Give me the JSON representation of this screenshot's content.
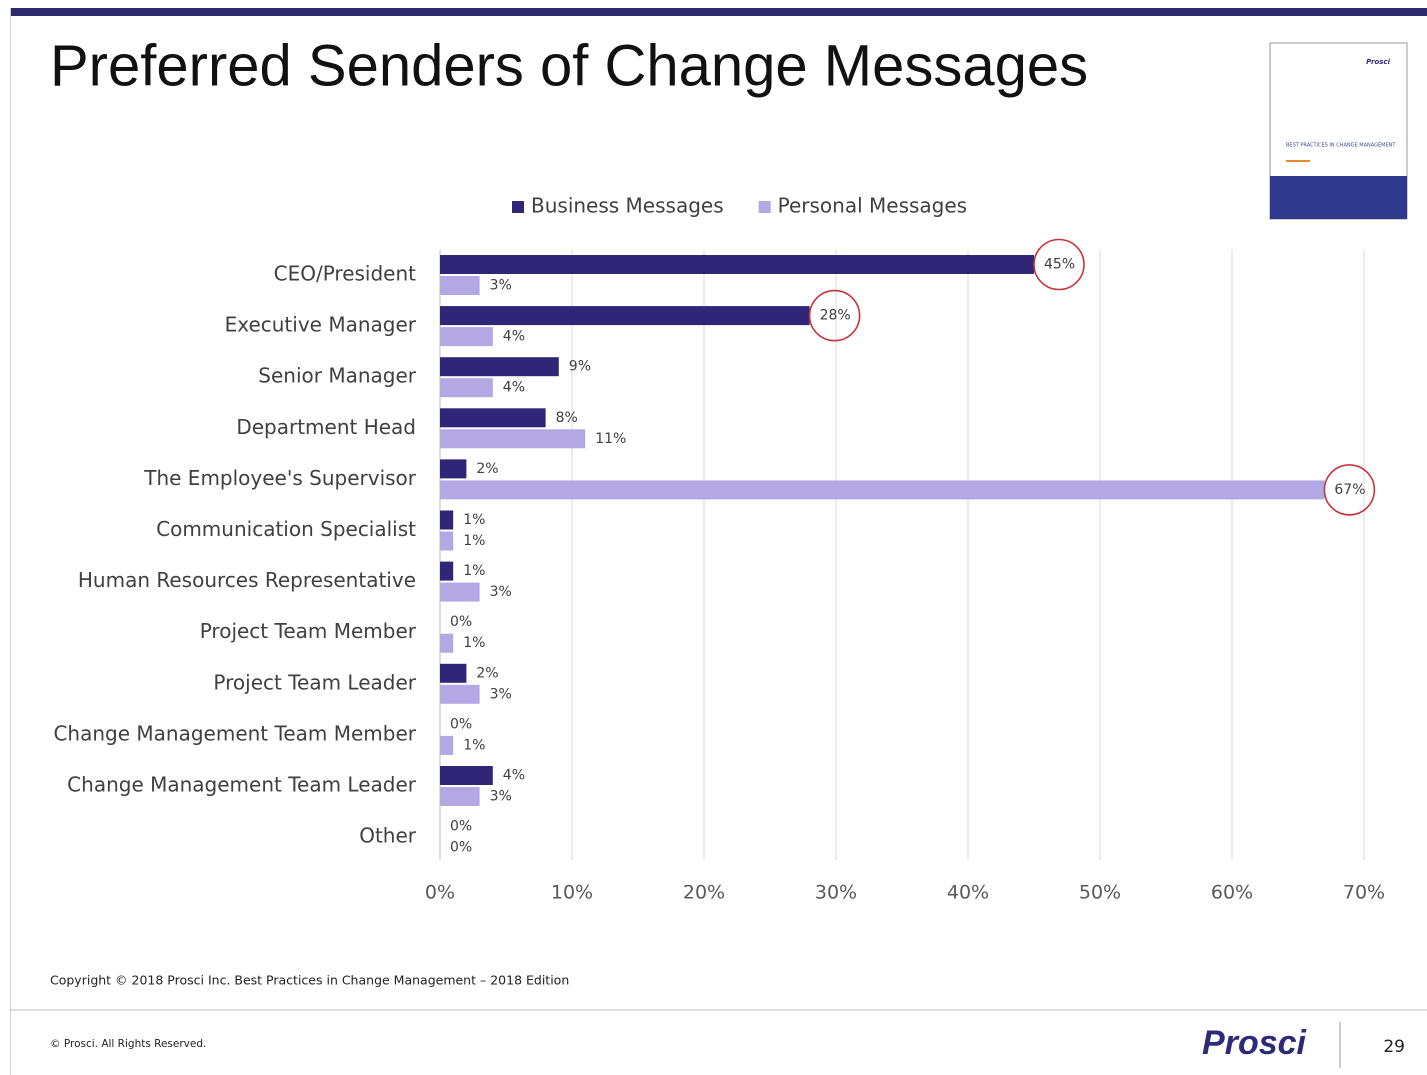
{
  "header": {
    "title": "Preferred Senders of Change Messages"
  },
  "cover": {
    "logo": "Prosci",
    "title": "BEST PRACTICES IN CHANGE MANAGEMENT"
  },
  "chart_data": {
    "type": "bar",
    "orientation": "horizontal",
    "categories": [
      "CEO/President",
      "Executive Manager",
      "Senior Manager",
      "Department Head",
      "The Employee's Supervisor",
      "Communication Specialist",
      "Human Resources Representative",
      "Project Team Member",
      "Project Team Leader",
      "Change Management Team Member",
      "Change Management Team Leader",
      "Other"
    ],
    "series": [
      {
        "name": "Business Messages",
        "color": "#2f2678",
        "values": [
          45,
          28,
          9,
          8,
          2,
          1,
          1,
          0,
          2,
          0,
          4,
          0
        ],
        "value_labels": [
          "45%",
          "28%",
          "9%",
          "8%",
          "2%",
          "1%",
          "1%",
          "0%",
          "2%",
          "0%",
          "4%",
          "0%"
        ]
      },
      {
        "name": "Personal Messages",
        "color": "#b3a8e4",
        "values": [
          3,
          4,
          4,
          11,
          67,
          1,
          3,
          1,
          3,
          1,
          3,
          0
        ],
        "value_labels": [
          "3%",
          "4%",
          "4%",
          "11%",
          "67%",
          "1%",
          "3%",
          "1%",
          "3%",
          "1%",
          "3%",
          "0%"
        ]
      }
    ],
    "xlim": [
      0,
      70
    ],
    "xticks": [
      {
        "value": 0,
        "label": "0%"
      },
      {
        "value": 10,
        "label": "10%"
      },
      {
        "value": 20,
        "label": "20%"
      },
      {
        "value": 30,
        "label": "30%"
      },
      {
        "value": 40,
        "label": "40%"
      },
      {
        "value": 50,
        "label": "50%"
      },
      {
        "value": 60,
        "label": "60%"
      },
      {
        "value": 70,
        "label": "70%"
      }
    ],
    "grid": true,
    "legend": "top"
  },
  "source": "Copyright © 2018 Prosci Inc. Best Practices in Change Management – 2018 Edition",
  "footer": {
    "rights": "© Prosci. All Rights Reserved.",
    "logo": "Prosci",
    "page": "29"
  }
}
